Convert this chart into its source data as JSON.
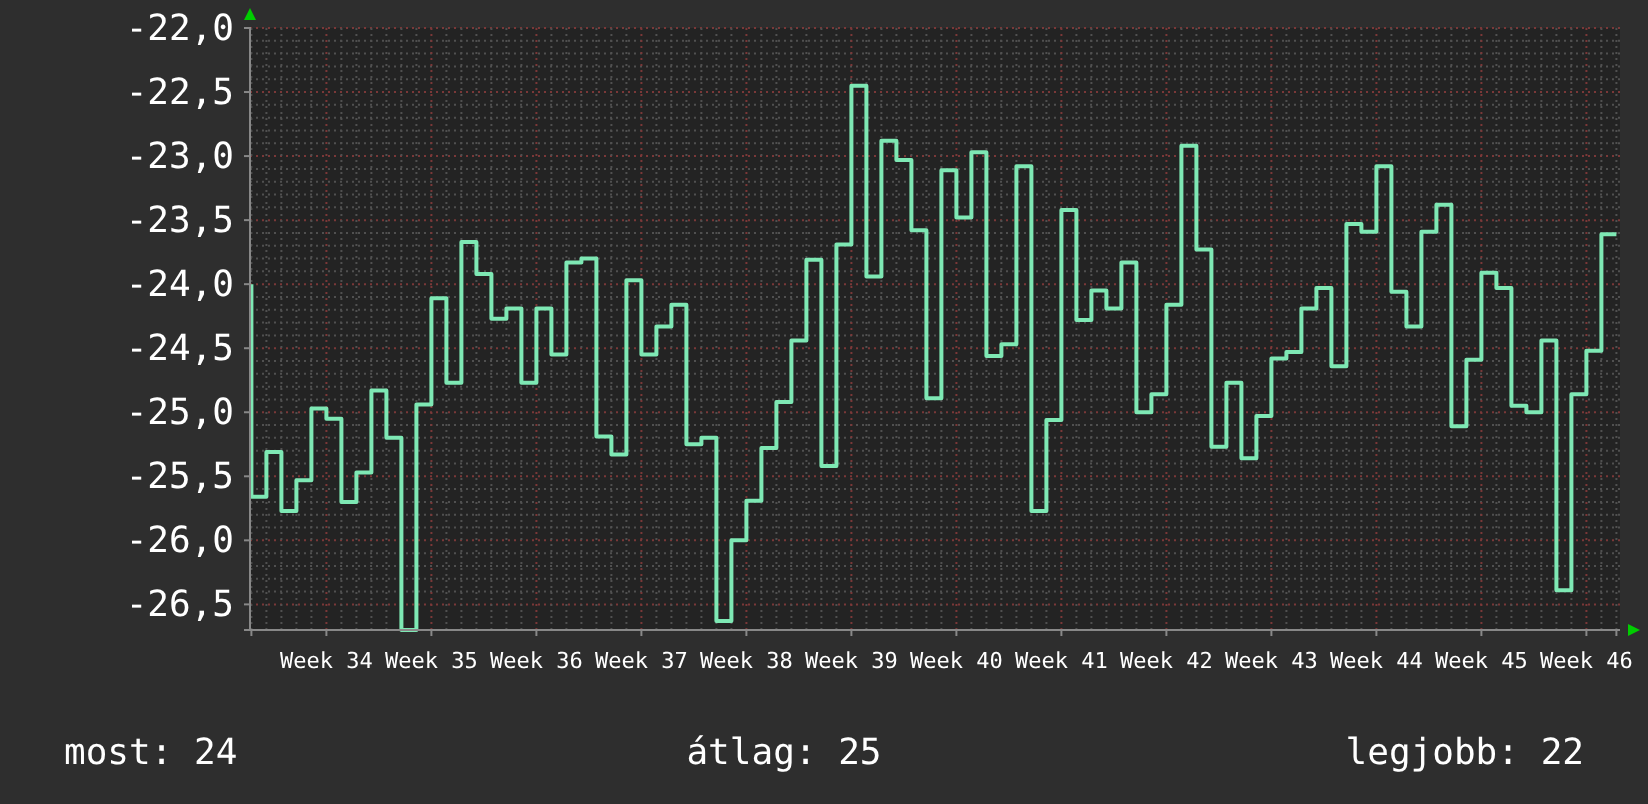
{
  "chart_data": {
    "type": "step",
    "color": "#7ee8b4",
    "categories": [
      null,
      null,
      null,
      null,
      null,
      "Week 34",
      null,
      null,
      null,
      null,
      null,
      null,
      "Week 35",
      null,
      null,
      null,
      null,
      null,
      null,
      "Week 36",
      null,
      null,
      null,
      null,
      null,
      null,
      "Week 37",
      null,
      null,
      null,
      null,
      null,
      null,
      "Week 38",
      null,
      null,
      null,
      null,
      null,
      null,
      "Week 39",
      null,
      null,
      null,
      null,
      null,
      null,
      "Week 40",
      null,
      null,
      null,
      null,
      null,
      null,
      "Week 41",
      null,
      null,
      null,
      null,
      null,
      null,
      "Week 42",
      null,
      null,
      null,
      null,
      null,
      null,
      "Week 43",
      null,
      null,
      null,
      null,
      null,
      null,
      "Week 44",
      null,
      null,
      null,
      null,
      null,
      null,
      "Week 45",
      null,
      null,
      null,
      null,
      null,
      null,
      "Week 46",
      null,
      null
    ],
    "ylim": [
      -26.7,
      -22.0
    ],
    "yticks": [
      {
        "value": -26.5,
        "label": "-26,5"
      },
      {
        "value": -26,
        "label": "-26,0"
      },
      {
        "value": -25.5,
        "label": "-25,5"
      },
      {
        "value": -25,
        "label": "-25,0"
      },
      {
        "value": -24.5,
        "label": "-24,5"
      },
      {
        "value": -24,
        "label": "-24,0"
      },
      {
        "value": -23.5,
        "label": "-23,5"
      },
      {
        "value": -23,
        "label": "-23,0"
      },
      {
        "value": -22.5,
        "label": "-22,5"
      },
      {
        "value": -22,
        "label": "-22,0"
      }
    ],
    "grid": true,
    "line_style": "solid",
    "values": [
      -24.0,
      -25.66,
      -25.31,
      -25.77,
      -25.53,
      -24.97,
      -25.05,
      -25.7,
      -25.47,
      -24.83,
      -25.2,
      -26.7,
      -24.94,
      -24.11,
      -24.77,
      -23.67,
      -23.92,
      -24.27,
      -24.19,
      -24.77,
      -24.19,
      -24.55,
      -23.83,
      -23.8,
      -25.19,
      -25.33,
      -23.97,
      -24.55,
      -24.33,
      -24.16,
      -25.25,
      -25.2,
      -26.63,
      -26.0,
      -25.69,
      -25.28,
      -24.92,
      -24.44,
      -23.81,
      -25.42,
      -23.69,
      -22.45,
      -23.94,
      -22.88,
      -23.03,
      -23.58,
      -24.89,
      -23.11,
      -23.48,
      -22.97,
      -24.56,
      -24.47,
      -23.08,
      -25.77,
      -25.06,
      -23.42,
      -24.28,
      -24.05,
      -24.19,
      -23.83,
      -25.0,
      -24.86,
      -24.16,
      -22.92,
      -23.73,
      -25.27,
      -24.77,
      -25.36,
      -25.03,
      -24.58,
      -24.53,
      -24.19,
      -24.03,
      -24.64,
      -23.53,
      -23.59,
      -23.08,
      -24.06,
      -24.33,
      -23.59,
      -23.38,
      -25.11,
      -24.59,
      -23.91,
      -24.03,
      -24.95,
      -25.0,
      -24.44,
      -26.39,
      -24.86,
      -24.52,
      -23.61
    ],
    "annotations": [
      "most: 24",
      "átlag: 25",
      "legjobb: 22"
    ]
  }
}
